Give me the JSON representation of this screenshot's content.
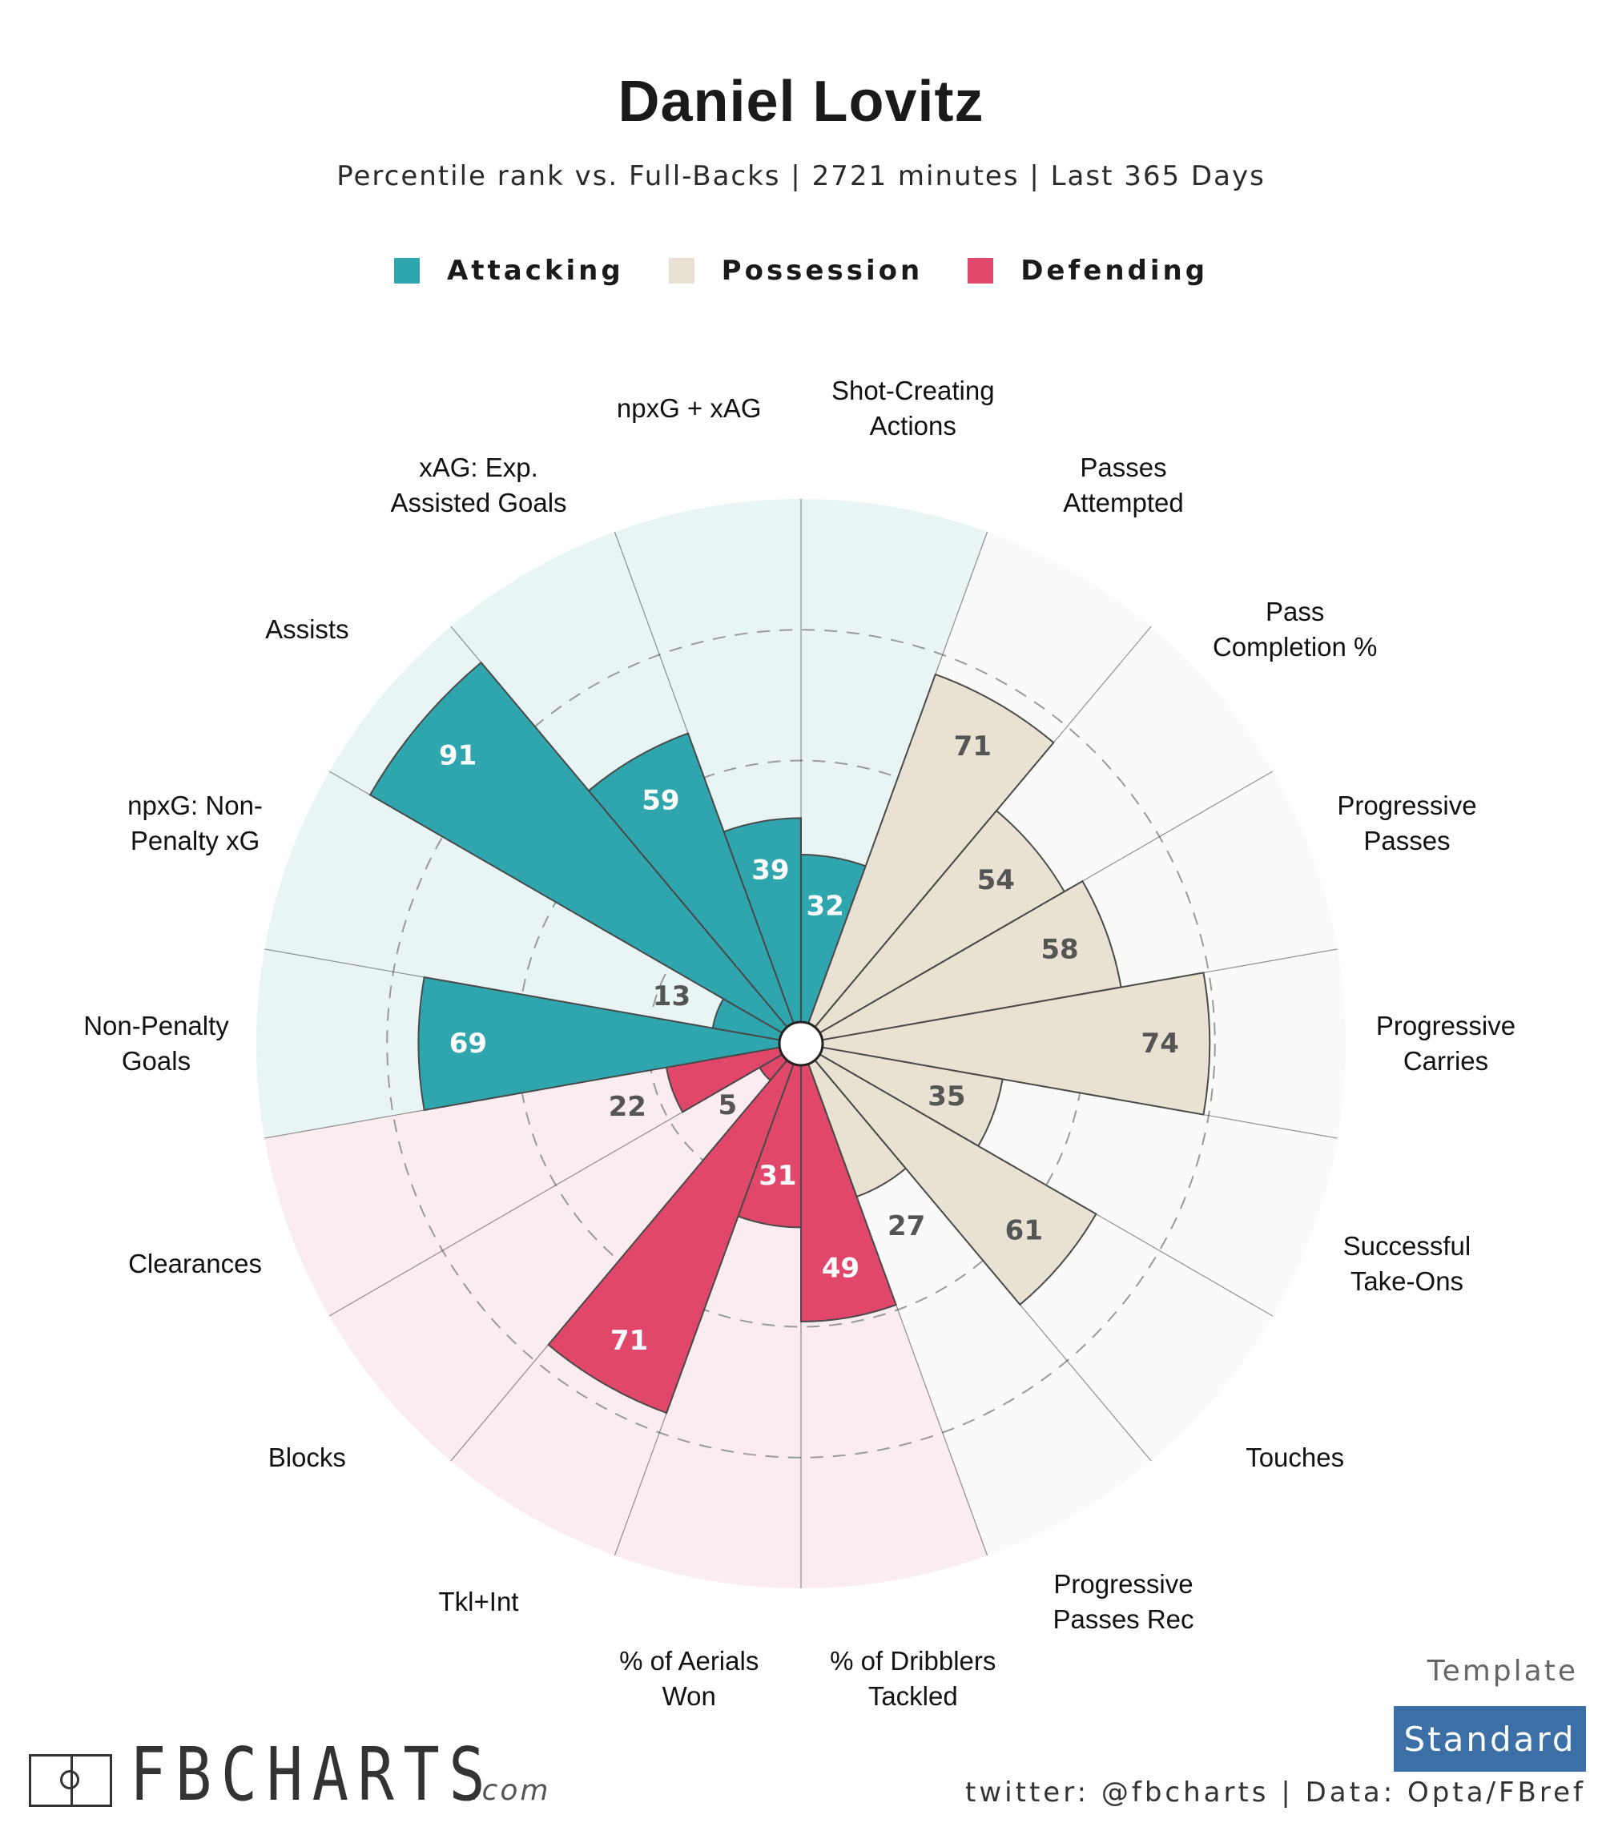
{
  "header": {
    "title": "Daniel Lovitz",
    "subtitle": "Percentile rank vs. Full-Backs | 2721 minutes | Last 365 Days"
  },
  "legend": [
    {
      "label": "Attacking",
      "color": "#2fa6ae"
    },
    {
      "label": "Possession",
      "color": "#e9e2d3"
    },
    {
      "label": "Defending",
      "color": "#e0476a"
    }
  ],
  "colors": {
    "Attacking": {
      "fill": "#2fa6ae",
      "bg": "#e9f5f5",
      "text": "#ffffff"
    },
    "Possession": {
      "fill": "#e9e2d3",
      "bg": "#fafaf9",
      "text": "#555555"
    },
    "Defending": {
      "fill": "#e0476a",
      "bg": "#fbecf0",
      "text": "#ffffff"
    },
    "empty_text": "#555555"
  },
  "chart_data": {
    "type": "polar-bar",
    "title": "Daniel Lovitz",
    "range": [
      0,
      100
    ],
    "gridlines": [
      25,
      50,
      75
    ],
    "categories": [
      "Shot-Creating\nActions",
      "Passes\nAttempted",
      "Pass\nCompletion %",
      "Progressive\nPasses",
      "Progressive\nCarries",
      "Successful\nTake-Ons",
      "Touches",
      "Progressive\nPasses Rec",
      "% of Dribblers\nTackled",
      "% of Aerials\nWon",
      "Tkl+Int",
      "Blocks",
      "Clearances",
      "Non-Penalty\nGoals",
      "npxG: Non-\nPenalty xG",
      "Assists",
      "xAG: Exp.\nAssisted Goals",
      "npxG + xAG"
    ],
    "groups": [
      "Attacking",
      "Possession",
      "Possession",
      "Possession",
      "Possession",
      "Possession",
      "Possession",
      "Possession",
      "Defending",
      "Defending",
      "Defending",
      "Defending",
      "Defending",
      "Attacking",
      "Attacking",
      "Attacking",
      "Attacking",
      "Attacking"
    ],
    "values": [
      32,
      71,
      54,
      58,
      74,
      35,
      61,
      27,
      49,
      31,
      71,
      5,
      22,
      69,
      13,
      91,
      59,
      39
    ]
  },
  "footer": {
    "template_label": "Template",
    "template_value": "Standard",
    "credits": "twitter: @fbcharts | Data: Opta/FBref",
    "logo_text": "FBCHARTS",
    "logo_suffix": ".com"
  }
}
